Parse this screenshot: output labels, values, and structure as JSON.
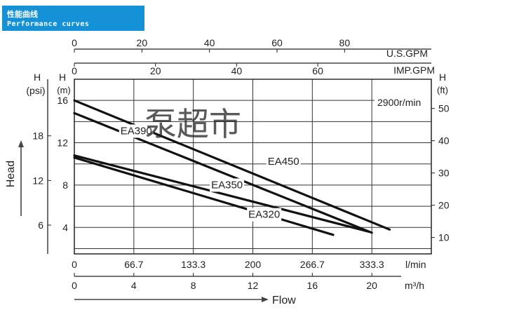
{
  "header": {
    "title_cn": "性能曲线",
    "title_en": "Performance curves"
  },
  "watermark": "泵超市",
  "chart_data": {
    "type": "line",
    "speed_label": "2900r/min",
    "y_left_outer": {
      "label": "H",
      "unit": "(psi)",
      "ticks": [
        18,
        12,
        6
      ]
    },
    "y_left_inner": {
      "label": "H",
      "unit": "(m)",
      "ticks": [
        16,
        12,
        8,
        4
      ]
    },
    "y_right": {
      "label": "H",
      "unit": "(ft)",
      "ticks": [
        50,
        40,
        30,
        20,
        10
      ]
    },
    "axis_title_head": "Head",
    "axis_title_flow": "Flow",
    "x_top_usgpm": {
      "unit": "U.S.GPM",
      "ticks": [
        0,
        20,
        40,
        60,
        80
      ]
    },
    "x_top_impgpm": {
      "unit": "IMP.GPM",
      "ticks": [
        0,
        20,
        40,
        60
      ]
    },
    "x_bottom_lmin": {
      "unit": "l/min",
      "ticks": [
        "0",
        "66.7",
        "133.3",
        "200",
        "266.7",
        "333.3"
      ]
    },
    "x_bottom_m3h": {
      "unit": "m³/h",
      "ticks": [
        0,
        4,
        8,
        12,
        16,
        20
      ]
    },
    "xlim_m3h": [
      0,
      24
    ],
    "ylim_m": [
      1.5,
      18
    ],
    "series": [
      {
        "name": "EA450",
        "points": [
          [
            0,
            16.0
          ],
          [
            21.2,
            3.8
          ]
        ],
        "label_at": [
          13,
          9.9
        ]
      },
      {
        "name": "EA390",
        "points": [
          [
            0,
            14.8
          ],
          [
            20.0,
            3.5
          ]
        ],
        "label_at": [
          3.1,
          12.8
        ]
      },
      {
        "name": "EA350",
        "points": [
          [
            0,
            10.8
          ],
          [
            19.8,
            3.6
          ]
        ],
        "label_at": [
          9.2,
          7.7
        ]
      },
      {
        "name": "EA320",
        "points": [
          [
            0,
            10.6
          ],
          [
            17.4,
            3.3
          ]
        ],
        "label_at": [
          11.7,
          4.9
        ]
      }
    ]
  }
}
